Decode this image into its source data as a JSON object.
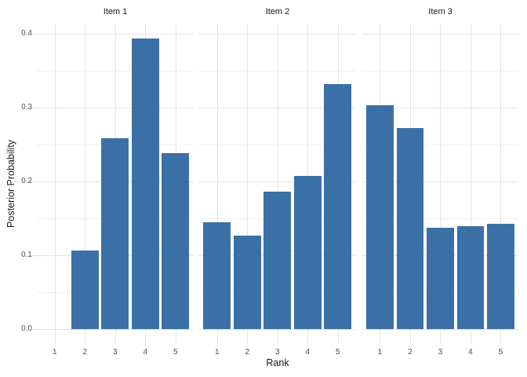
{
  "chart_data": {
    "type": "bar",
    "title": "",
    "xlabel": "Rank",
    "ylabel": "Posterior Probability",
    "categories": [
      "1",
      "2",
      "3",
      "4",
      "5"
    ],
    "facets": [
      {
        "label": "Item 1",
        "values": [
          0.0,
          0.107,
          0.259,
          0.394,
          0.239
        ]
      },
      {
        "label": "Item 2",
        "values": [
          0.145,
          0.127,
          0.186,
          0.208,
          0.332
        ]
      },
      {
        "label": "Item 3",
        "values": [
          0.304,
          0.273,
          0.137,
          0.14,
          0.143
        ]
      }
    ],
    "y_major_ticks": [
      0.0,
      0.1,
      0.2,
      0.3,
      0.4
    ],
    "y_minor_ticks": [
      0.05,
      0.15,
      0.25,
      0.35
    ],
    "ylim": [
      -0.0197,
      0.4142
    ],
    "grid": "major-and-minor-horizontal, major-vertical",
    "legend_position": "none",
    "bar_color": "#3b70a6",
    "grid_major_color": "#e4e4e4",
    "grid_minor_color": "#f1f1f1",
    "tick_text_color": "#4d4d4d",
    "facet_title_color": "#1a1a1a"
  }
}
